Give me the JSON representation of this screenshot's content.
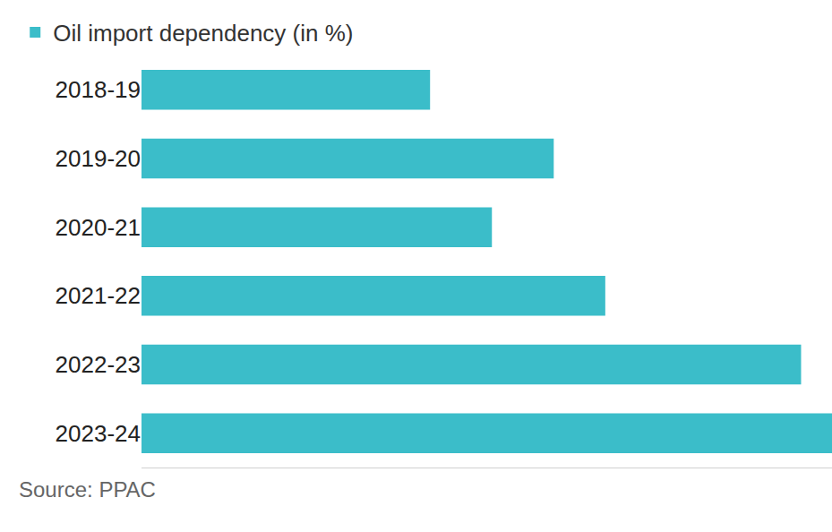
{
  "chart_data": {
    "type": "bar",
    "orientation": "horizontal",
    "categories": [
      "2018-19",
      "2019-20",
      "2020-21",
      "2021-22",
      "2022-23",
      "2023-24"
    ],
    "series": [
      {
        "name": "Oil import dependency (in %)",
        "color": "#3bbdc9",
        "values": [
          83.8,
          85,
          84.4,
          85.5,
          87.4,
          87.7
        ]
      }
    ],
    "xlim": [
      81,
      87.7
    ],
    "xticks": [],
    "tick_labels": "y",
    "data_labels": true,
    "legend": "top-left",
    "grid": false,
    "annotations": [
      "Source: PPAC"
    ]
  }
}
